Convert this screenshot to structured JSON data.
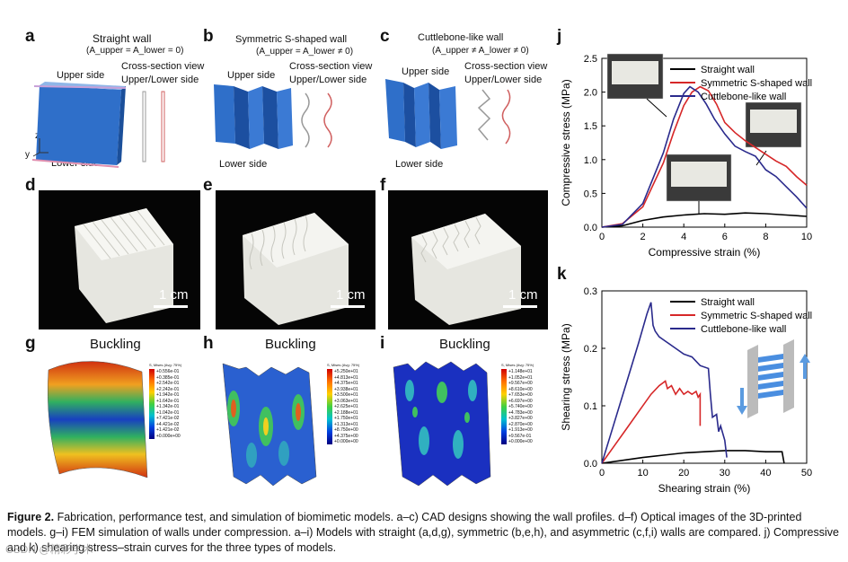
{
  "panels": {
    "a": {
      "letter": "a",
      "title": "Straight wall",
      "eq": "(A_upper = A_lower = 0)",
      "upper": "Upper side",
      "lower": "Lower side",
      "cs1": "Cross-section view",
      "cs2": "Upper/Lower side",
      "ax_z": "z",
      "ax_y": "y",
      "ax_x": "x"
    },
    "b": {
      "letter": "b",
      "title": "Symmetric S-shaped wall",
      "eq": "(A_upper = A_lower ≠ 0)",
      "upper": "Upper side",
      "lower": "Lower side",
      "cs1": "Cross-section view",
      "cs2": "Upper/Lower side"
    },
    "c": {
      "letter": "c",
      "title": "Cuttlebone-like wall",
      "eq": "(A_upper ≠ A_lower ≠ 0)",
      "upper": "Upper side",
      "lower": "Lower side",
      "cs1": "Cross-section view",
      "cs2": "Upper/Lower side"
    },
    "d": {
      "letter": "d",
      "scale": "1 cm"
    },
    "e": {
      "letter": "e",
      "scale": "1 cm"
    },
    "f": {
      "letter": "f",
      "scale": "1 cm"
    },
    "g": {
      "letter": "g",
      "title": "Buckling",
      "legend_head": "S, Mises (Avg: 75%)",
      "legend_vals": [
        "+0.556e-01",
        "+0.385e-01",
        "+2.542e-01",
        "+2.242e-01",
        "+1.942e-01",
        "+1.642e-01",
        "+1.342e-01",
        "+1.042e-01",
        "+7.421e-02",
        "+4.421e-02",
        "+1.421e-02",
        "+0.000e+00"
      ]
    },
    "h": {
      "letter": "h",
      "title": "Buckling",
      "legend_head": "S, Mises (Avg: 75%)",
      "legend_vals": [
        "+5.250e+01",
        "+4.813e+01",
        "+4.375e+01",
        "+3.938e+01",
        "+3.500e+01",
        "+3.063e+01",
        "+2.625e+01",
        "+2.188e+01",
        "+1.750e+01",
        "+1.313e+01",
        "+8.750e+00",
        "+4.375e+00",
        "+0.000e+00"
      ]
    },
    "i": {
      "letter": "i",
      "title": "Buckling",
      "legend_head": "S, Mises (Avg: 75%)",
      "legend_vals": [
        "+1.148e+01",
        "+1.052e+01",
        "+9.567e+00",
        "+8.610e+00",
        "+7.653e+00",
        "+6.697e+00",
        "+5.740e+00",
        "+4.783e+00",
        "+3.827e+00",
        "+2.870e+00",
        "+1.913e+00",
        "+9.567e-01",
        "+0.000e+00"
      ]
    },
    "j": {
      "letter": "j"
    },
    "k": {
      "letter": "k"
    }
  },
  "chart_data": [
    {
      "type": "line",
      "id": "j",
      "xlabel": "Compressive strain (%)",
      "ylabel": "Compressive stress (MPa)",
      "xlim": [
        0,
        10
      ],
      "ylim": [
        0,
        2.5
      ],
      "xticks": [
        0,
        2,
        4,
        6,
        8,
        10
      ],
      "yticks": [
        0.0,
        0.5,
        1.0,
        1.5,
        2.0,
        2.5
      ],
      "legend_position": "top-right",
      "series": [
        {
          "name": "Straight wall",
          "color": "#000000",
          "x": [
            0,
            1,
            2,
            3,
            4,
            5,
            6,
            7,
            8,
            9,
            10
          ],
          "y": [
            0,
            0.02,
            0.1,
            0.15,
            0.18,
            0.2,
            0.19,
            0.21,
            0.2,
            0.18,
            0.16
          ]
        },
        {
          "name": "Symmetric S-shaped wall",
          "color": "#d62728",
          "x": [
            0,
            1,
            2,
            3,
            3.5,
            4,
            4.4,
            4.8,
            5.2,
            5.6,
            6,
            6.5,
            7,
            7.5,
            8,
            8.5,
            9,
            9.5,
            10
          ],
          "y": [
            0,
            0.05,
            0.3,
            0.95,
            1.4,
            1.8,
            2.0,
            2.08,
            2.02,
            1.82,
            1.55,
            1.4,
            1.28,
            1.18,
            1.08,
            0.98,
            0.9,
            0.75,
            0.62
          ]
        },
        {
          "name": "Cuttlebone-like wall",
          "color": "#2a2a8c",
          "x": [
            0,
            1,
            2,
            3,
            3.5,
            4,
            4.3,
            4.7,
            5.1,
            5.5,
            6,
            6.5,
            7,
            7.5,
            8,
            8.5,
            9,
            9.5,
            10
          ],
          "y": [
            0,
            0.04,
            0.35,
            1.1,
            1.6,
            1.98,
            2.08,
            2.0,
            1.82,
            1.6,
            1.38,
            1.2,
            1.12,
            1.05,
            0.85,
            0.75,
            0.6,
            0.45,
            0.28
          ]
        }
      ]
    },
    {
      "type": "line",
      "id": "k",
      "xlabel": "Shearing strain (%)",
      "ylabel": "Shearing stress (MPa)",
      "xlim": [
        0,
        50
      ],
      "ylim": [
        0,
        0.3
      ],
      "xticks": [
        0,
        10,
        20,
        30,
        40,
        50
      ],
      "yticks": [
        0.0,
        0.1,
        0.2,
        0.3
      ],
      "legend_position": "top-right",
      "series": [
        {
          "name": "Straight wall",
          "color": "#000000",
          "x": [
            0,
            5,
            10,
            15,
            20,
            25,
            30,
            35,
            40,
            44,
            44.5
          ],
          "y": [
            0,
            0.005,
            0.01,
            0.014,
            0.018,
            0.02,
            0.022,
            0.022,
            0.02,
            0.02,
            0.0
          ]
        },
        {
          "name": "Symmetric S-shaped wall",
          "color": "#d62728",
          "x": [
            0,
            3,
            6,
            9,
            12,
            14,
            15.5,
            16,
            17,
            18,
            19,
            20,
            21,
            22,
            23,
            23.5,
            24,
            24
          ],
          "y": [
            0,
            0.03,
            0.06,
            0.09,
            0.12,
            0.135,
            0.143,
            0.13,
            0.135,
            0.12,
            0.13,
            0.12,
            0.125,
            0.12,
            0.125,
            0.115,
            0.12,
            0.065
          ]
        },
        {
          "name": "Cuttlebone-like wall",
          "color": "#2a2a8c",
          "x": [
            0,
            3,
            6,
            9,
            11,
            12,
            12.5,
            13,
            14,
            16,
            18,
            20,
            22,
            24,
            26,
            26.5,
            27,
            28,
            28.5,
            29,
            30,
            30.5
          ],
          "y": [
            0,
            0.07,
            0.14,
            0.21,
            0.26,
            0.28,
            0.24,
            0.23,
            0.22,
            0.21,
            0.2,
            0.19,
            0.185,
            0.17,
            0.165,
            0.12,
            0.08,
            0.085,
            0.055,
            0.065,
            0.04,
            0.01
          ]
        }
      ]
    }
  ],
  "caption": {
    "label": "Figure 2.",
    "text": " Fabrication, performance test, and simulation of biomimetic models. a–c) CAD designs showing the wall profiles. d–f) Optical images of the 3D-printed models. g–i) FEM simulation of walls under compression. a–i) Models with straight (a,d,g), symmetric (b,e,h), and asymmetric (c,f,i) walls are compared. j) Compressive and k) shearing stress–strain curves for the three types of models."
  },
  "watermark": "CSDN @精彩学术"
}
